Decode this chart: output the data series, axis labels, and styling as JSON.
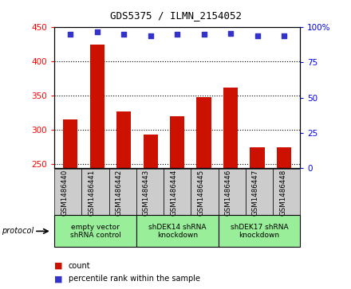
{
  "title": "GDS5375 / ILMN_2154052",
  "samples": [
    "GSM1486440",
    "GSM1486441",
    "GSM1486442",
    "GSM1486443",
    "GSM1486444",
    "GSM1486445",
    "GSM1486446",
    "GSM1486447",
    "GSM1486448"
  ],
  "counts": [
    315,
    425,
    327,
    293,
    320,
    348,
    362,
    275,
    275
  ],
  "percentiles": [
    95,
    97,
    95,
    94,
    95,
    95,
    96,
    94,
    94
  ],
  "bar_color": "#cc1100",
  "dot_color": "#3333cc",
  "ylim_left": [
    245,
    450
  ],
  "ylim_right": [
    0,
    100
  ],
  "yticks_left": [
    250,
    300,
    350,
    400,
    450
  ],
  "yticks_right": [
    0,
    25,
    50,
    75,
    100
  ],
  "yticklabels_right": [
    "0",
    "25",
    "50",
    "75",
    "100%"
  ],
  "groups": [
    {
      "label": "empty vector\nshRNA control",
      "start": 0,
      "end": 3,
      "color": "#99ee99"
    },
    {
      "label": "shDEK14 shRNA\nknockdown",
      "start": 3,
      "end": 6,
      "color": "#99ee99"
    },
    {
      "label": "shDEK17 shRNA\nknockdown",
      "start": 6,
      "end": 9,
      "color": "#99ee99"
    }
  ],
  "legend_count_label": "count",
  "legend_percentile_label": "percentile rank within the sample",
  "protocol_label": "protocol",
  "background_color": "#ffffff",
  "bar_bottom": 245,
  "xtick_bg_color": "#cccccc"
}
